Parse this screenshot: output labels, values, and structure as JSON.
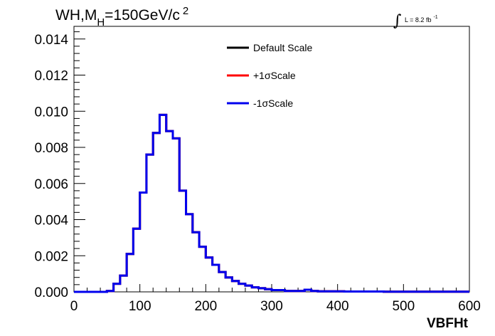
{
  "chart_data": {
    "type": "line",
    "title": "WH,M_H=150GeV/c^2",
    "title_parts": {
      "main": "WH,M",
      "sub": "H",
      "rest": "=150GeV/c",
      "sup": "2"
    },
    "lumi_label": {
      "integral": "∫",
      "text": "L = 8.2 fb",
      "sup": "-1"
    },
    "xlabel": "VBFHt",
    "ylabel": "",
    "xlim": [
      0,
      600
    ],
    "ylim": [
      0,
      0.0147
    ],
    "x_ticks": [
      "0",
      "100",
      "200",
      "300",
      "400",
      "500",
      "600"
    ],
    "y_ticks": [
      "0.000",
      "0.002",
      "0.004",
      "0.006",
      "0.008",
      "0.010",
      "0.012",
      "0.014"
    ],
    "grid": false,
    "legend_placement": "top-center",
    "bin_width": 10,
    "bin_low_edges": [
      0,
      10,
      20,
      30,
      40,
      50,
      60,
      70,
      80,
      90,
      100,
      110,
      120,
      130,
      140,
      150,
      160,
      170,
      180,
      190,
      200,
      210,
      220,
      230,
      240,
      250,
      260,
      270,
      280,
      290,
      300,
      310,
      320,
      330,
      340,
      350,
      360,
      370,
      380,
      390,
      400,
      410,
      420,
      430,
      440,
      450,
      460,
      470,
      480,
      490,
      500,
      510,
      520,
      530,
      540,
      550,
      560,
      570,
      580,
      590
    ],
    "series": [
      {
        "name": "Default Scale",
        "color": "#000000",
        "values": [
          0,
          0,
          0,
          0,
          0,
          5e-05,
          0.00045,
          0.0009,
          0.0021,
          0.0035,
          0.0055,
          0.0076,
          0.0088,
          0.0098,
          0.0089,
          0.0085,
          0.0056,
          0.0043,
          0.0033,
          0.0025,
          0.0019,
          0.0015,
          0.0011,
          0.0008,
          0.0006,
          0.00045,
          0.00035,
          0.00025,
          0.0002,
          0.00015,
          0.0001,
          0.0001,
          5e-05,
          5e-05,
          5e-05,
          0.00012,
          5e-05,
          3e-05,
          3e-05,
          3e-05,
          3e-05,
          2e-05,
          2e-05,
          2e-05,
          2e-05,
          2e-05,
          2e-05,
          1e-05,
          1e-05,
          1e-05,
          1e-05,
          1e-05,
          1e-05,
          1e-05,
          1e-05,
          1e-05,
          1e-05,
          1e-05,
          1e-05,
          1e-05
        ]
      },
      {
        "name": "+1σScale",
        "color": "#ff0000",
        "values": [
          0,
          0,
          0,
          0,
          0,
          5e-05,
          0.00045,
          0.0009,
          0.0021,
          0.0035,
          0.0055,
          0.0076,
          0.0088,
          0.0098,
          0.0089,
          0.0085,
          0.0056,
          0.0043,
          0.0033,
          0.0025,
          0.0019,
          0.0015,
          0.0011,
          0.0008,
          0.0006,
          0.00045,
          0.00035,
          0.00025,
          0.0002,
          0.00015,
          0.0001,
          0.0001,
          5e-05,
          5e-05,
          5e-05,
          0.00012,
          5e-05,
          3e-05,
          3e-05,
          3e-05,
          3e-05,
          2e-05,
          2e-05,
          2e-05,
          2e-05,
          2e-05,
          2e-05,
          1e-05,
          1e-05,
          1e-05,
          1e-05,
          1e-05,
          1e-05,
          1e-05,
          1e-05,
          1e-05,
          1e-05,
          1e-05,
          1e-05,
          1e-05
        ]
      },
      {
        "name": "-1σScale",
        "color": "#0000ee",
        "values": [
          0,
          0,
          0,
          0,
          0,
          5e-05,
          0.00045,
          0.0009,
          0.0021,
          0.0035,
          0.0055,
          0.0076,
          0.0088,
          0.0098,
          0.0089,
          0.0085,
          0.0056,
          0.0043,
          0.0033,
          0.0025,
          0.0019,
          0.0015,
          0.0011,
          0.0008,
          0.0006,
          0.00045,
          0.00035,
          0.00025,
          0.0002,
          0.00015,
          0.0001,
          0.0001,
          5e-05,
          5e-05,
          5e-05,
          0.00012,
          5e-05,
          3e-05,
          3e-05,
          3e-05,
          3e-05,
          2e-05,
          2e-05,
          2e-05,
          2e-05,
          2e-05,
          2e-05,
          1e-05,
          1e-05,
          1e-05,
          1e-05,
          1e-05,
          1e-05,
          1e-05,
          1e-05,
          1e-05,
          1e-05,
          1e-05,
          1e-05,
          1e-05
        ]
      }
    ]
  }
}
